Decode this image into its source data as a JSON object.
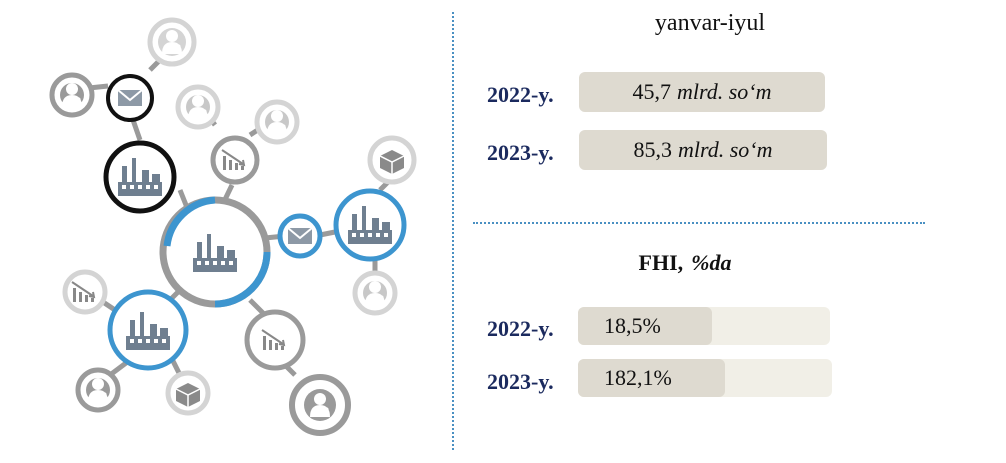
{
  "period_title": "yanvar-iyul",
  "section1": {
    "unit": "mlrd. so‘m",
    "rows": [
      {
        "year": "2022-y.",
        "value_text": "45,7"
      },
      {
        "year": "2023-y.",
        "value_text": "85,3"
      }
    ]
  },
  "section2": {
    "title": "FHI,",
    "unit": "%da",
    "rows": [
      {
        "year": "2022-y.",
        "value_text": "18,5%"
      },
      {
        "year": "2023-y.",
        "value_text": "182,1%"
      }
    ]
  },
  "chart_data": [
    {
      "type": "table",
      "title": "yanvar-iyul",
      "unit": "mlrd. so‘m",
      "categories": [
        "2022-y.",
        "2023-y."
      ],
      "values": [
        45.7,
        85.3
      ]
    },
    {
      "type": "bar",
      "title": "FHI, %da",
      "categories": [
        "2022-y.",
        "2023-y."
      ],
      "values": [
        18.5,
        182.1
      ],
      "bar_fill_fraction": [
        0.53,
        0.58
      ]
    }
  ],
  "colors": {
    "accent_blue": "#3d95cf",
    "dark_ring": "#111111",
    "gray_ring": "#9a9a9a",
    "light_ring": "#d4d4d4",
    "bar_fill": "#dedad0",
    "bar_track": "#f1efe7",
    "year_text": "#1b2a5e"
  }
}
